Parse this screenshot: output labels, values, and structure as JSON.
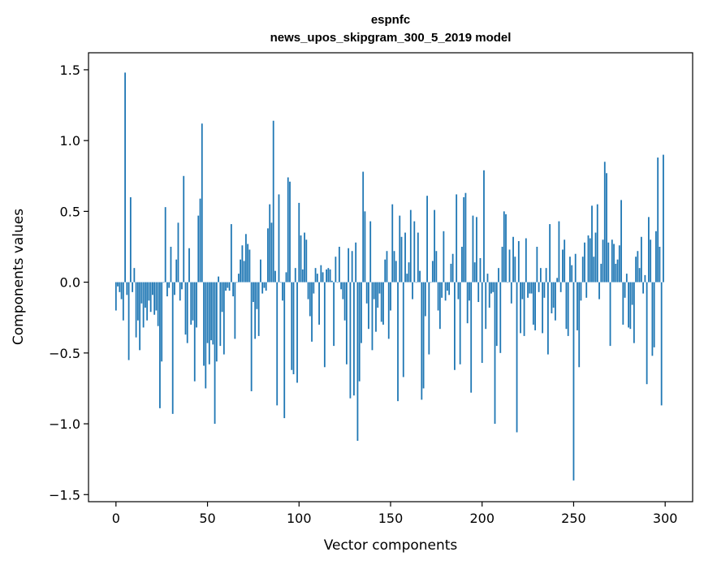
{
  "chart_data": {
    "type": "bar",
    "title": "espnfc",
    "subtitle": "news_upos_skipgram_300_5_2019 model",
    "xlabel": "Vector components",
    "ylabel": "Components values",
    "xlim": [
      -15,
      315
    ],
    "ylim": [
      -1.55,
      1.62
    ],
    "xticks": [
      0,
      50,
      100,
      150,
      200,
      250,
      300
    ],
    "yticks": [
      -1.5,
      -1.0,
      -0.5,
      0.0,
      0.5,
      1.0,
      1.5
    ],
    "ytick_labels": [
      "−1.5",
      "−1.0",
      "−0.5",
      "0.0",
      "0.5",
      "1.0",
      "1.5"
    ],
    "bar_color": "#1f77b4",
    "x": "0..299",
    "values": [
      -0.2,
      -0.03,
      -0.07,
      -0.12,
      -0.27,
      1.48,
      -0.09,
      -0.55,
      0.6,
      -0.07,
      0.1,
      -0.39,
      -0.27,
      -0.48,
      -0.15,
      -0.32,
      -0.18,
      -0.27,
      -0.13,
      -0.21,
      -0.09,
      -0.23,
      -0.2,
      -0.31,
      -0.89,
      -0.56,
      0.0,
      0.53,
      -0.1,
      -0.04,
      0.25,
      -0.93,
      -0.09,
      0.16,
      0.42,
      -0.13,
      -0.05,
      0.75,
      -0.37,
      -0.43,
      0.24,
      -0.3,
      -0.27,
      -0.7,
      -0.32,
      0.47,
      0.59,
      1.12,
      -0.59,
      -0.75,
      -0.43,
      -0.58,
      -0.41,
      -0.44,
      -1.0,
      -0.56,
      0.04,
      -0.45,
      -0.21,
      -0.51,
      -0.06,
      -0.04,
      -0.06,
      0.41,
      -0.1,
      -0.4,
      0.0,
      0.06,
      0.16,
      0.26,
      0.15,
      0.34,
      0.27,
      0.23,
      -0.77,
      -0.14,
      -0.4,
      -0.19,
      -0.38,
      0.16,
      -0.08,
      -0.04,
      -0.06,
      0.38,
      0.55,
      0.42,
      1.14,
      0.08,
      -0.87,
      0.62,
      0.0,
      -0.13,
      -0.96,
      0.07,
      0.74,
      0.71,
      -0.62,
      -0.65,
      0.1,
      -0.71,
      0.56,
      0.33,
      0.09,
      0.35,
      0.3,
      -0.12,
      -0.24,
      -0.42,
      -0.08,
      0.1,
      0.06,
      -0.3,
      0.12,
      0.07,
      -0.6,
      0.09,
      0.1,
      0.09,
      0.01,
      -0.45,
      0.18,
      0.0,
      0.25,
      -0.05,
      -0.12,
      -0.27,
      -0.58,
      0.24,
      -0.82,
      0.22,
      -0.8,
      0.28,
      -1.12,
      -0.7,
      -0.43,
      0.78,
      0.5,
      -0.15,
      -0.33,
      0.43,
      -0.48,
      -0.12,
      -0.35,
      -0.18,
      -0.08,
      -0.28,
      -0.3,
      0.16,
      0.22,
      -0.4,
      -0.2,
      0.55,
      0.22,
      0.15,
      -0.84,
      0.47,
      0.32,
      -0.67,
      0.35,
      0.06,
      0.14,
      0.51,
      -0.12,
      0.43,
      0.0,
      0.35,
      0.08,
      -0.83,
      -0.75,
      -0.24,
      0.61,
      -0.51,
      0.0,
      0.15,
      0.51,
      0.22,
      -0.2,
      -0.33,
      -0.11,
      0.36,
      -0.13,
      -0.06,
      -0.09,
      0.13,
      0.2,
      -0.62,
      0.62,
      -0.12,
      -0.58,
      0.25,
      0.6,
      0.63,
      -0.29,
      -0.13,
      -0.78,
      0.47,
      0.14,
      0.46,
      -0.14,
      0.17,
      -0.57,
      0.79,
      -0.33,
      0.06,
      -0.18,
      -0.08,
      -0.07,
      -1.0,
      -0.45,
      0.1,
      -0.5,
      0.25,
      0.5,
      0.48,
      0.0,
      0.23,
      -0.15,
      0.32,
      0.18,
      -1.06,
      0.29,
      -0.36,
      -0.12,
      -0.38,
      0.31,
      -0.11,
      -0.08,
      -0.08,
      -0.3,
      -0.34,
      0.25,
      -0.07,
      0.1,
      -0.36,
      -0.11,
      0.1,
      -0.51,
      0.41,
      -0.22,
      -0.18,
      -0.27,
      0.03,
      0.43,
      -0.07,
      0.23,
      0.3,
      -0.33,
      -0.38,
      0.18,
      0.12,
      -1.4,
      0.2,
      -0.34,
      -0.6,
      -0.13,
      0.18,
      0.28,
      -0.11,
      0.33,
      0.31,
      0.54,
      0.18,
      0.35,
      0.55,
      -0.12,
      0.13,
      0.3,
      0.85,
      0.77,
      0.28,
      -0.45,
      0.3,
      0.27,
      0.13,
      0.16,
      0.26,
      0.58,
      -0.3,
      -0.11,
      0.06,
      -0.32,
      -0.33,
      -0.16,
      -0.43,
      0.18,
      0.22,
      0.1,
      0.32,
      -0.08,
      0.05,
      -0.72,
      0.46,
      0.3,
      -0.52,
      -0.46,
      0.36,
      0.88,
      0.25,
      -0.87,
      0.9
    ]
  }
}
